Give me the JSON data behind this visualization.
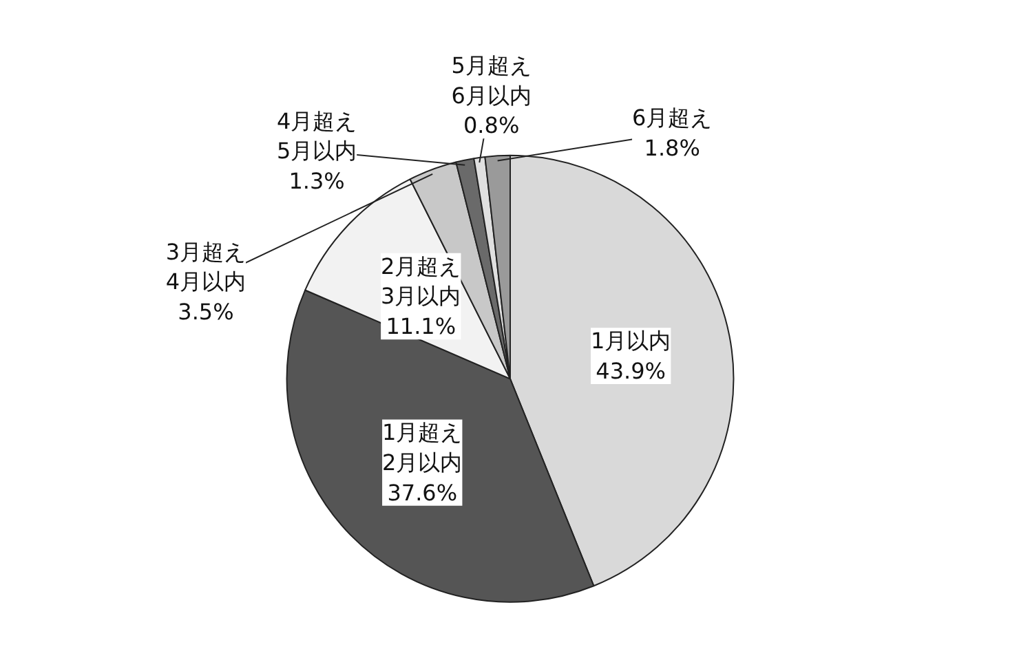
{
  "chart_data": {
    "type": "pie",
    "categories": [
      "1月以内",
      "1月超え\n2月以内",
      "2月超え\n3月以内",
      "3月超え\n4月以内",
      "4月超え\n5月以内",
      "5月超え\n6月以内",
      "6月超え"
    ],
    "values": [
      43.9,
      37.6,
      11.1,
      3.5,
      1.3,
      0.8,
      1.8
    ],
    "value_labels": [
      "43.9%",
      "37.6%",
      "11.1%",
      "3.5%",
      "1.3%",
      "0.8%",
      "1.8%"
    ],
    "colors": [
      "#d9d9d9",
      "#555555",
      "#f2f2f2",
      "#c8c8c8",
      "#6a6a6a",
      "#e0e0e0",
      "#9a9a9a"
    ]
  }
}
